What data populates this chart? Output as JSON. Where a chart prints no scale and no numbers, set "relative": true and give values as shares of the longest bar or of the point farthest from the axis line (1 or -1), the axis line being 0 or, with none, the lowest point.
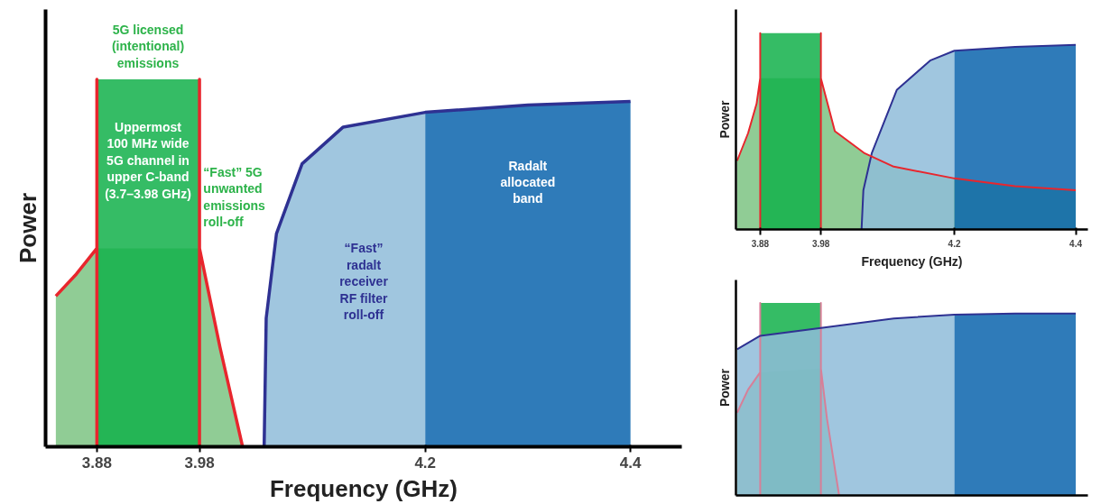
{
  "chart_data": [
    {
      "type": "area",
      "relative": true,
      "xlabel": "Frequency (GHz)",
      "ylabel": "Power",
      "xlim": [
        3.83,
        4.45
      ],
      "xticks": [
        3.88,
        3.98,
        4.2,
        4.4
      ],
      "series": [
        {
          "color": "#7dc383",
          "x": [
            3.84,
            3.86,
            3.88,
            3.98,
            4.0,
            4.022
          ],
          "values": [
            0.41,
            0.47,
            0.54,
            0.54,
            0.27,
            0
          ]
        },
        {
          "color": "#12b04a",
          "x": [
            3.88,
            3.98
          ],
          "values": [
            1,
            1
          ]
        },
        {
          "type": "line",
          "color": "#e8262d",
          "x": [
            3.84,
            3.86,
            3.88,
            3.88,
            3.88
          ],
          "values": [
            0.41,
            0.47,
            0.54,
            1,
            0
          ]
        },
        {
          "type": "line",
          "color": "#e8262d",
          "x": [
            3.98,
            3.98,
            3.98,
            4.0,
            4.022
          ],
          "values": [
            0,
            1,
            0.54,
            0.27,
            0
          ]
        },
        {
          "color": "#8fbcd9",
          "x": [
            4.043,
            4.045,
            4.055,
            4.08,
            4.12,
            4.2
          ],
          "values": [
            0,
            0.35,
            0.58,
            0.77,
            0.87,
            0.91
          ]
        },
        {
          "color": "#0b64ad",
          "x": [
            4.2,
            4.3,
            4.4
          ],
          "values": [
            0.91,
            0.93,
            0.94
          ]
        },
        {
          "type": "line",
          "color": "#2e3192",
          "x": [
            4.043,
            4.045,
            4.055,
            4.08,
            4.12,
            4.2,
            4.3,
            4.4
          ],
          "values": [
            0,
            0.35,
            0.58,
            0.77,
            0.87,
            0.91,
            0.93,
            0.94
          ]
        }
      ],
      "annotations": [
        "5G licensed\n(intentional)\nemissions",
        "Uppermost\n100 MHz wide\n5G channel in\nupper C-band\n(3.7–3.98 GHz)",
        "“Fast” 5G\nunwanted\nemissions\nroll-off",
        "“Fast”\nradalt\nreceiver\nRF filter\nroll-off",
        "Radalt\nallocated\nband"
      ]
    },
    {
      "type": "area",
      "relative": true,
      "xlabel": "Frequency (GHz)",
      "ylabel": "Power",
      "xlim": [
        3.84,
        4.42
      ],
      "xticks": [
        3.88,
        3.98,
        4.2,
        4.4
      ],
      "series": [
        {
          "color": "#7dc383",
          "x": [
            3.842,
            3.86,
            3.874,
            3.88,
            3.98,
            4.003,
            4.051,
            4.1,
            4.2,
            4.3,
            4.4
          ],
          "values": [
            0.35,
            0.49,
            0.64,
            0.77,
            0.77,
            0.5,
            0.39,
            0.32,
            0.26,
            0.22,
            0.2
          ]
        },
        {
          "color": "#12b04a",
          "x": [
            3.88,
            3.98
          ],
          "values": [
            1,
            1
          ]
        },
        {
          "color": "#8fbcd9",
          "x": [
            4.047,
            4.05,
            4.064,
            4.105,
            4.16,
            4.2
          ],
          "values": [
            0,
            0.2,
            0.39,
            0.71,
            0.86,
            0.91
          ]
        },
        {
          "color": "#0b64ad",
          "x": [
            4.2,
            4.3,
            4.4
          ],
          "values": [
            0.91,
            0.93,
            0.94
          ]
        },
        {
          "type": "line",
          "color": "#2e3192",
          "x": [
            4.047,
            4.05,
            4.064,
            4.105,
            4.16,
            4.2,
            4.3,
            4.4
          ],
          "values": [
            0,
            0.2,
            0.39,
            0.71,
            0.86,
            0.91,
            0.93,
            0.94
          ]
        },
        {
          "type": "line",
          "color": "#e8262d",
          "x": [
            3.842,
            3.86,
            3.874,
            3.88,
            3.88,
            3.88
          ],
          "values": [
            0.35,
            0.49,
            0.64,
            0.77,
            1,
            0
          ]
        },
        {
          "type": "line",
          "color": "#e8262d",
          "x": [
            3.98,
            3.98,
            3.98,
            4.003,
            4.051,
            4.1,
            4.2,
            4.3,
            4.4
          ],
          "values": [
            0,
            1,
            0.77,
            0.5,
            0.39,
            0.32,
            0.26,
            0.22,
            0.2
          ]
        }
      ]
    },
    {
      "type": "area",
      "relative": true,
      "ylabel": "Power",
      "xlim": [
        3.84,
        4.42
      ],
      "tick_labels": false,
      "series": [
        {
          "color": "#7dc383",
          "x": [
            3.842,
            3.86,
            3.88,
            3.98,
            3.99,
            4.0,
            4.01
          ],
          "values": [
            0.43,
            0.55,
            0.64,
            0.66,
            0.4,
            0.2,
            0
          ]
        },
        {
          "color": "#12b04a",
          "x": [
            3.88,
            3.98
          ],
          "values": [
            1,
            1
          ]
        },
        {
          "color": "#8fbcd9",
          "x": [
            3.842,
            3.88,
            3.98,
            4.1,
            4.2
          ],
          "values": [
            0.76,
            0.83,
            0.87,
            0.92,
            0.94
          ]
        },
        {
          "color": "#0b64ad",
          "x": [
            4.2,
            4.3,
            4.4
          ],
          "values": [
            0.94,
            0.945,
            0.945
          ]
        },
        {
          "type": "line",
          "color": "#d77f98",
          "x": [
            3.842,
            3.86,
            3.88,
            3.88,
            3.88
          ],
          "values": [
            0.43,
            0.55,
            0.64,
            1,
            0
          ]
        },
        {
          "type": "line",
          "color": "#d77f98",
          "x": [
            3.98,
            3.98,
            3.98,
            3.99,
            4.0,
            4.01
          ],
          "values": [
            0,
            1,
            0.66,
            0.4,
            0.2,
            0
          ]
        },
        {
          "type": "line",
          "color": "#2e3192",
          "x": [
            3.842,
            3.88,
            3.98,
            4.1,
            4.2,
            4.3,
            4.4
          ],
          "values": [
            0.76,
            0.83,
            0.87,
            0.92,
            0.94,
            0.945,
            0.945
          ]
        }
      ]
    }
  ]
}
